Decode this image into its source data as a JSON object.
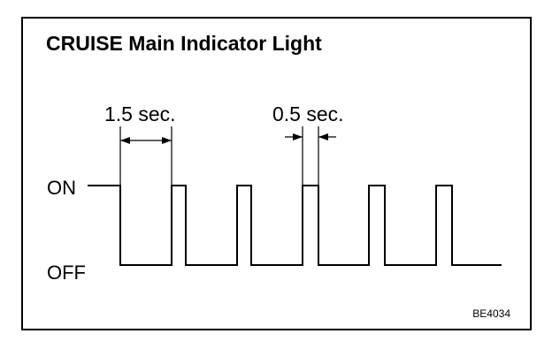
{
  "title": "CRUISE Main Indicator Light",
  "labels": {
    "on": "ON",
    "off": "OFF"
  },
  "dimensions": {
    "long_interval": "1.5 sec.",
    "short_interval": "0.5 sec."
  },
  "figure_code": "BE4034"
}
